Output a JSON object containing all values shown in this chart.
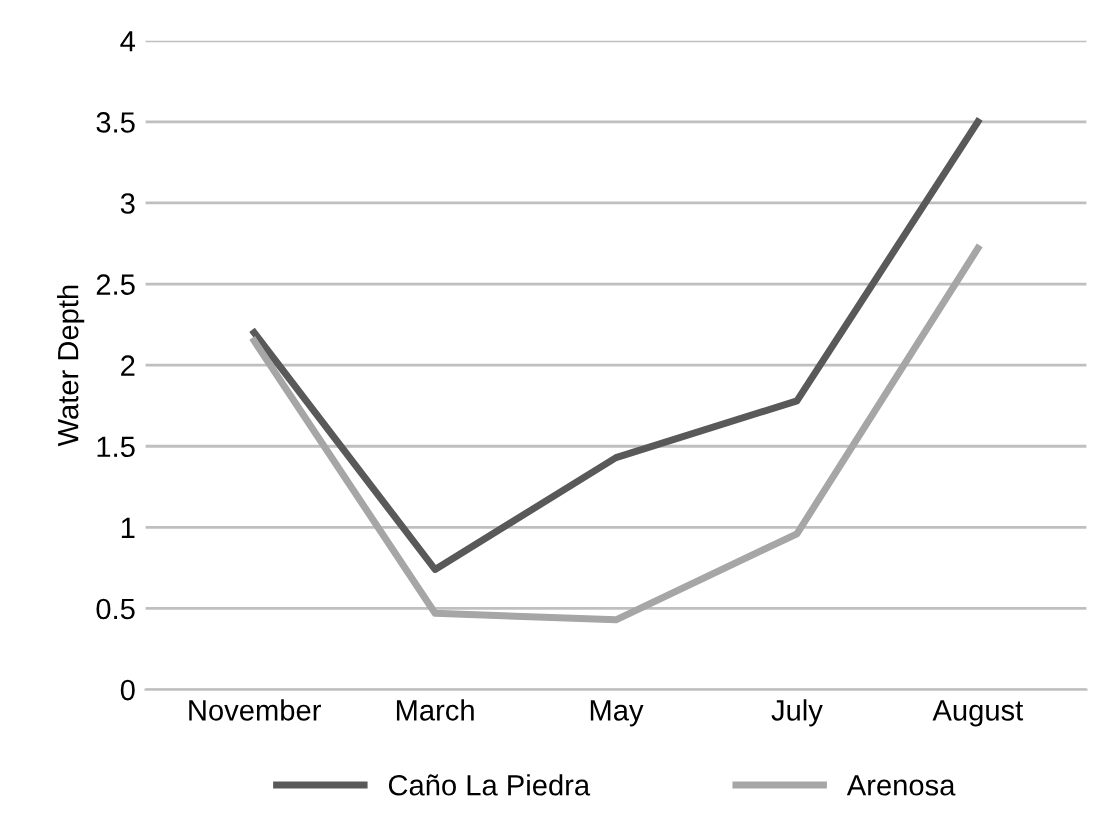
{
  "chart_data": {
    "type": "line",
    "ylabel": "Water Depth",
    "categories": [
      "November",
      "March",
      "May",
      "July",
      "August"
    ],
    "series": [
      {
        "name": "Caño La Piedra",
        "color": "#595959",
        "values": [
          2.2,
          0.74,
          1.43,
          1.78,
          3.5
        ]
      },
      {
        "name": "Arenosa",
        "color": "#a6a6a6",
        "values": [
          2.15,
          0.47,
          0.43,
          0.96,
          2.72
        ]
      }
    ],
    "ylim": [
      0,
      4
    ],
    "yticks": [
      0,
      0.5,
      1,
      1.5,
      2,
      2.5,
      3,
      3.5,
      4
    ],
    "grid": "y",
    "legend": "bottom",
    "marker": "none",
    "line_style": "solid"
  }
}
